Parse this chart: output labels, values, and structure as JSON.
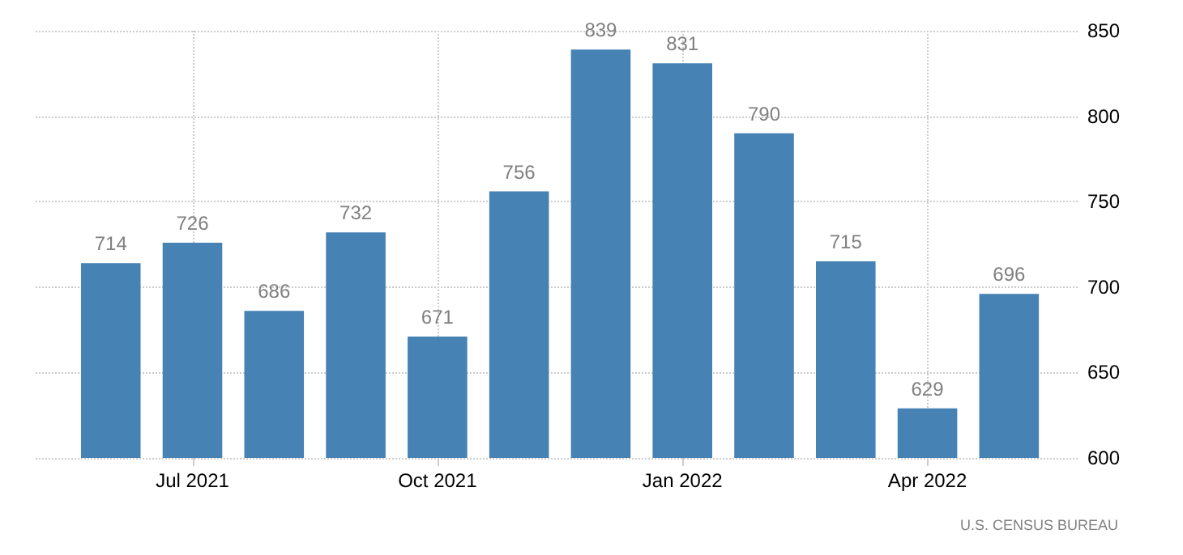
{
  "chart_data": {
    "type": "bar",
    "categories": [
      null,
      "Jul 2021",
      null,
      null,
      "Oct 2021",
      null,
      null,
      "Jan 2022",
      null,
      null,
      "Apr 2022",
      null
    ],
    "values": [
      714,
      726,
      686,
      732,
      671,
      756,
      839,
      831,
      790,
      715,
      629,
      696
    ],
    "color": "#4682b4",
    "ylim": [
      600,
      850
    ],
    "yticks": [
      600,
      650,
      700,
      750,
      800,
      850
    ],
    "grid": true,
    "data_labels": true,
    "annotations": [
      "U.S. CENSUS BUREAU"
    ]
  }
}
